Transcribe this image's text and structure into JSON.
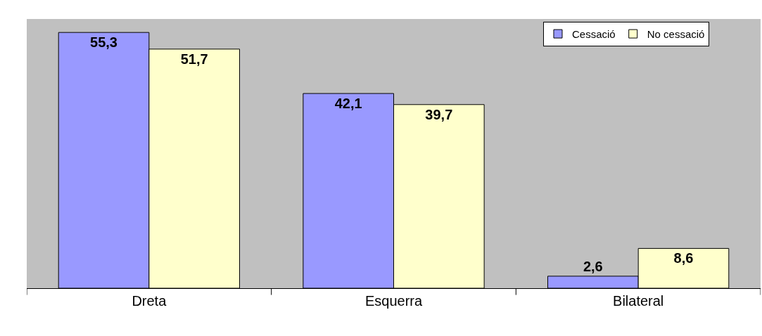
{
  "chart_data": {
    "type": "bar",
    "categories": [
      "Dreta",
      "Esquerra",
      "Bilateral"
    ],
    "series": [
      {
        "name": "Cessació",
        "color": "#9999ff",
        "values": [
          55.3,
          42.1,
          2.6
        ],
        "value_labels": [
          "55,3",
          "42,1",
          "2,6"
        ]
      },
      {
        "name": "No cessació",
        "color": "#ffffcc",
        "values": [
          51.7,
          39.7,
          8.6
        ],
        "value_labels": [
          "51,7",
          "39,7",
          "8,6"
        ]
      }
    ],
    "legend": "top right",
    "grid": false,
    "tick_labels": "x"
  }
}
